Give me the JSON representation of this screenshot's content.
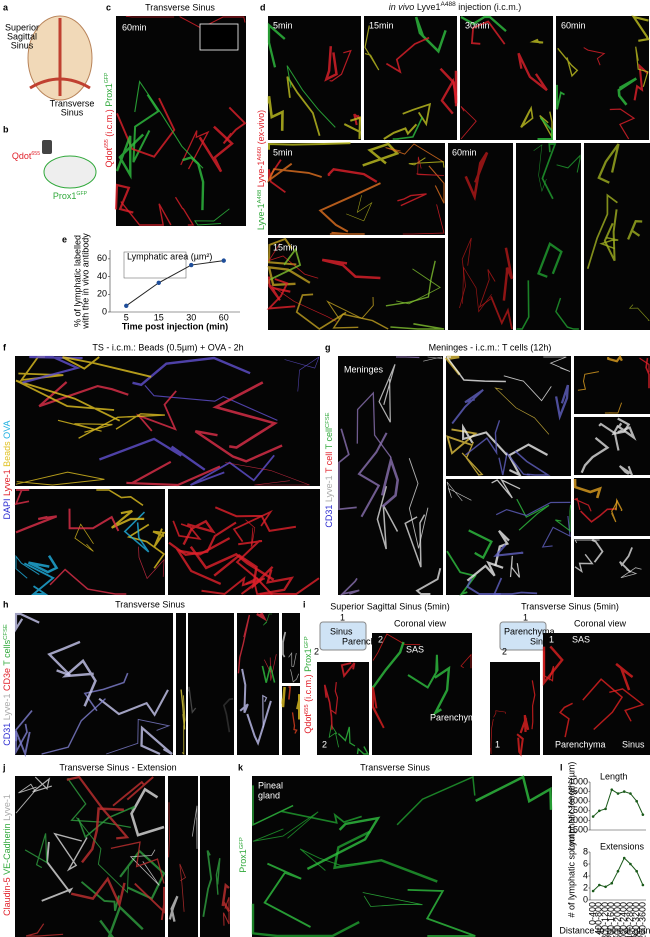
{
  "letters": {
    "a": "a",
    "b": "b",
    "c": "c",
    "d": "d",
    "e": "e",
    "f": "f",
    "g": "g",
    "h": "h",
    "i": "i",
    "j": "j",
    "k": "k",
    "l": "l"
  },
  "a": {
    "sss": [
      "Superior",
      "Sagittal",
      "Sinus"
    ],
    "ts": [
      "Transverse",
      "Sinus"
    ]
  },
  "b": {
    "qdot": [
      {
        "text": "Qdot",
        "color": "#e0202a"
      },
      {
        "text": "655",
        "color": "#e0202a",
        "sup": true
      }
    ],
    "prox": [
      {
        "text": "Prox1",
        "color": "#2fa83a"
      },
      {
        "text": "GFP",
        "color": "#2fa83a",
        "sup": true
      }
    ]
  },
  "c": {
    "title": "Transverse Sinus",
    "time": "60min",
    "side": [
      {
        "text": "Qdot",
        "color": "#e0202a"
      },
      {
        "text": "655",
        "color": "#e0202a",
        "sup": true
      },
      {
        "text": " (i.c.m.) ",
        "color": "#e0202a"
      },
      {
        "text": "Prox1",
        "color": "#2fa83a"
      },
      {
        "text": "GFP",
        "color": "#2fa83a",
        "sup": true
      }
    ]
  },
  "d": {
    "title": [
      {
        "text": "in vivo",
        "italic": true,
        "color": "#111"
      },
      {
        "text": " Lyve1",
        "color": "#111"
      },
      {
        "text": "A488",
        "sup": true,
        "color": "#111"
      },
      {
        "text": " injection (i.c.m.)",
        "color": "#111"
      }
    ],
    "side": [
      {
        "text": "Lyve-1",
        "color": "#2fa83a"
      },
      {
        "text": "A488",
        "color": "#2fa83a",
        "sup": true
      },
      {
        "text": " Lyve-1",
        "color": "#e0202a"
      },
      {
        "text": "A660",
        "color": "#e0202a",
        "sup": true
      },
      {
        "text": " (ex-vivo)",
        "color": "#e0202a"
      }
    ],
    "top_times": [
      "5min",
      "15min",
      "30min",
      "60min"
    ],
    "bottom_times": [
      "5min",
      "15min"
    ],
    "right_time": "60min"
  },
  "e": {
    "type": "line",
    "y_label": [
      "% of lymphatic labelled",
      "with the in vivo antibody"
    ],
    "x_label": "Time post injection (min)",
    "inset_title": "Lymphatic area (µm²)",
    "categories": [
      "5",
      "15",
      "30",
      "60"
    ],
    "values": [
      7,
      33,
      53,
      58
    ],
    "color": "#1f4e9a",
    "ylim": [
      0,
      70
    ],
    "yticks": [
      0,
      20,
      40,
      60
    ]
  },
  "f": {
    "title": "TS  -  i.c.m.: Beads (0.5µm) + OVA - 2h",
    "side": [
      {
        "text": "DAPI ",
        "color": "#2a2ad0"
      },
      {
        "text": "Lyve-1 ",
        "color": "#e0202a"
      },
      {
        "text": "Beads ",
        "color": "#e0c020"
      },
      {
        "text": "OVA",
        "color": "#20b0e0"
      }
    ]
  },
  "g": {
    "title": "Meninges  -  i.c.m.: T cells (12h)",
    "inner": "Meninges",
    "side": [
      {
        "text": "CD31 ",
        "color": "#2a2ad0"
      },
      {
        "text": "Lyve-1 ",
        "color": "#aaaaaa"
      },
      {
        "text": "T cell ",
        "color": "#e0202a"
      },
      {
        "text": "T cell",
        "color": "#2fa83a"
      },
      {
        "text": "CFSE",
        "color": "#2fa83a",
        "sup": true
      }
    ]
  },
  "h": {
    "title": "Transverse Sinus",
    "side": [
      {
        "text": "CD31 ",
        "color": "#2a2ad0"
      },
      {
        "text": "Lyve-1",
        "color": "#aaaaaa"
      },
      {
        "text": " CD3e ",
        "color": "#e0202a"
      },
      {
        "text": "T cells",
        "color": "#2fa83a"
      },
      {
        "text": "CFSE",
        "color": "#2fa83a",
        "sup": true
      }
    ]
  },
  "i": {
    "sss_title": "Superior Sagittal Sinus (5min)",
    "ts_title": "Transverse Sinus (5min)",
    "coronal": [
      "Coronal view",
      "Coronal view"
    ],
    "sas": [
      "SAS",
      "SAS"
    ],
    "parenchyma": [
      "Parenchyma",
      "Parenchyma"
    ],
    "sinus": "Sinus",
    "schematic": [
      "Sinus",
      "Parenchyma",
      "Parenchyma",
      "Sinus"
    ],
    "nums": [
      "1",
      "2",
      "1",
      "2",
      "2",
      "1",
      "2",
      "1"
    ],
    "side": [
      {
        "text": "Qdot",
        "color": "#e0202a"
      },
      {
        "text": "655",
        "color": "#e0202a",
        "sup": true
      },
      {
        "text": " (i.c.m.) ",
        "color": "#e0202a"
      },
      {
        "text": "Prox1",
        "color": "#2fa83a"
      },
      {
        "text": "GFP",
        "color": "#2fa83a",
        "sup": true
      }
    ]
  },
  "j": {
    "title": "Transverse Sinus - Extension",
    "side": [
      {
        "text": "Claudin-5 ",
        "color": "#e0202a"
      },
      {
        "text": "VE-Cadherin ",
        "color": "#2fa83a"
      },
      {
        "text": "Lyve-1",
        "color": "#aaaaaa"
      }
    ]
  },
  "k": {
    "title": "Transverse Sinus",
    "pineal": [
      "Pineal",
      "gland"
    ],
    "side": [
      {
        "text": "Prox1",
        "color": "#2fa83a"
      },
      {
        "text": "GFP",
        "color": "#2fa83a",
        "sup": true
      }
    ]
  },
  "l": {
    "x_label": "Distance to pineal gland (µm)",
    "color": "#1a5a1a",
    "categories": [
      "0-400",
      "400-800",
      "800-1200",
      "1200-1600",
      "1600-2000",
      "2000-2400",
      "2400-2800",
      "2800-3200",
      "3200-3600"
    ],
    "charts": [
      {
        "type": "line",
        "title": "Length",
        "y_label": "Lymphatic length (µm)",
        "values": [
          2200,
          2500,
          2600,
          3600,
          3400,
          3500,
          3400,
          3000,
          2300
        ],
        "ylim": [
          1500,
          4000
        ],
        "yticks": [
          1500,
          2000,
          2500,
          3000,
          3500,
          4000
        ]
      },
      {
        "type": "line",
        "title": "Extensions",
        "y_label": "# of lymphatic sprout",
        "values": [
          1.5,
          2.5,
          2.2,
          2.8,
          4.8,
          7,
          6,
          4.8,
          2.5
        ],
        "ylim": [
          0,
          8
        ],
        "yticks": [
          0,
          2,
          4,
          6,
          8
        ]
      }
    ]
  }
}
